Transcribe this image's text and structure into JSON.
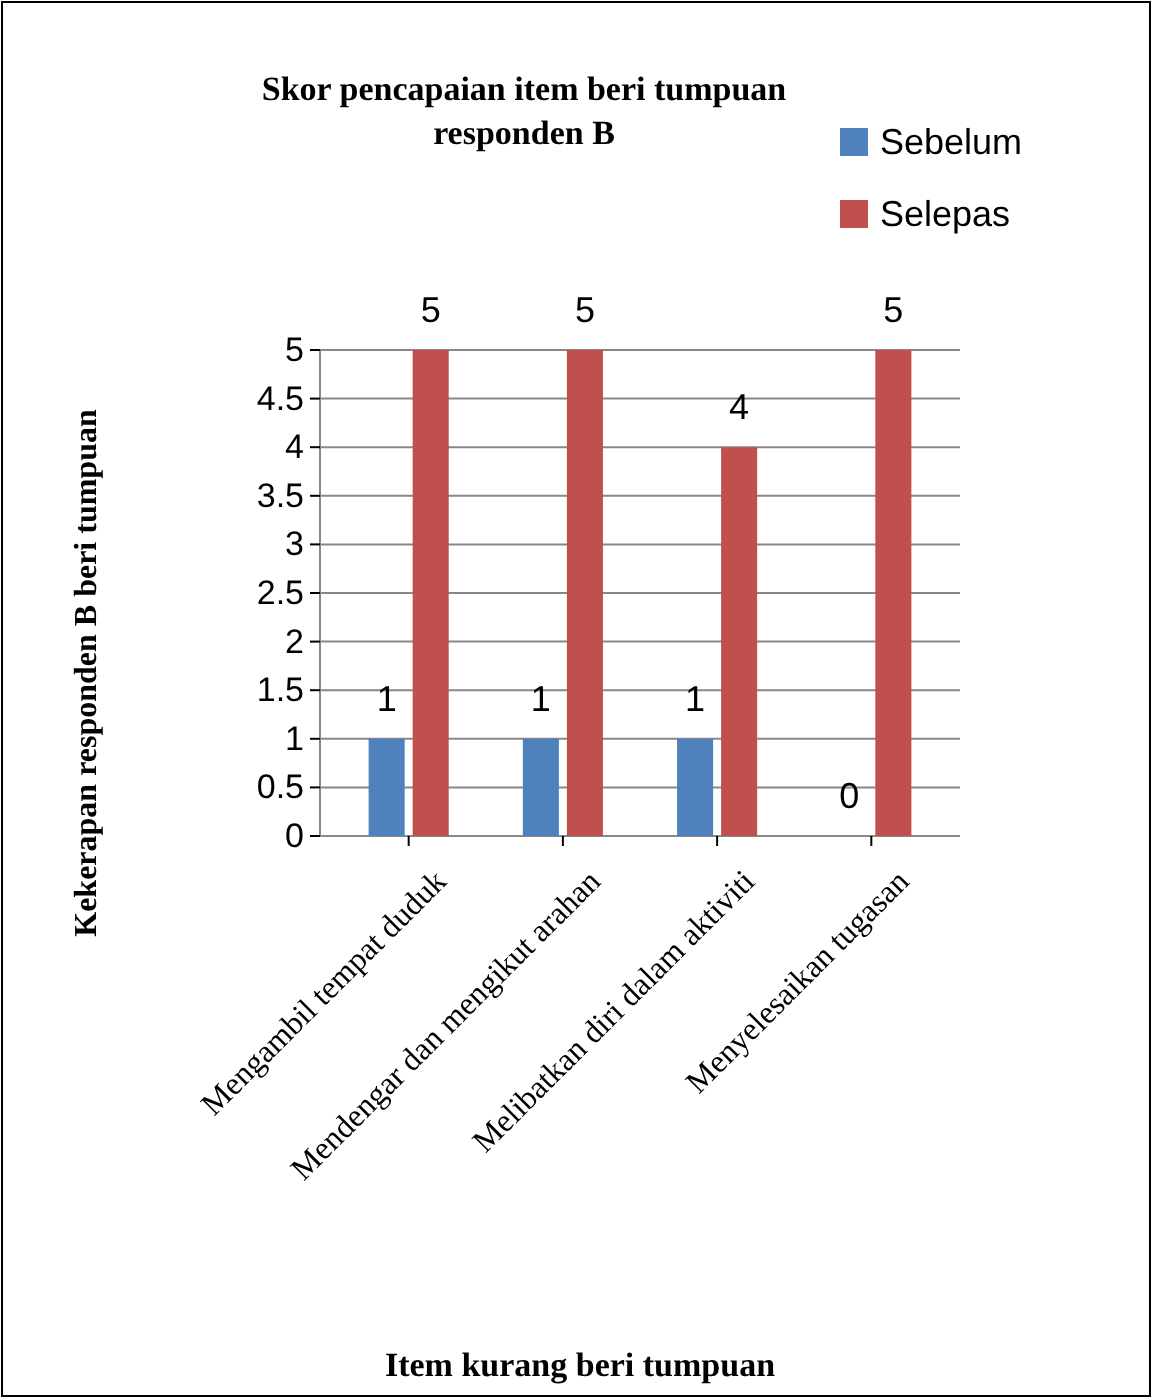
{
  "chart_data": {
    "type": "bar",
    "title": "Skor pencapaian item beri tumpuan responden B",
    "xlabel": "Item kurang beri tumpuan",
    "ylabel": "Kekerapan responden B  beri tumpuan",
    "categories": [
      "Mengambil tempat duduk",
      "Mendengar dan mengikut arahan",
      "Melibatkan diri dalam aktiviti",
      "Menyelesaikan tugasan"
    ],
    "series": [
      {
        "name": "Sebelum",
        "color": "#4f81bd",
        "values": [
          1,
          1,
          1,
          0
        ]
      },
      {
        "name": "Selepas",
        "color": "#c0504d",
        "values": [
          5,
          5,
          4,
          5
        ]
      }
    ],
    "ylim": [
      0,
      5
    ],
    "yticks": [
      0,
      0.5,
      1,
      1.5,
      2,
      2.5,
      3,
      3.5,
      4,
      4.5,
      5
    ],
    "grid": true,
    "legend": "top right",
    "data_labels": true
  }
}
